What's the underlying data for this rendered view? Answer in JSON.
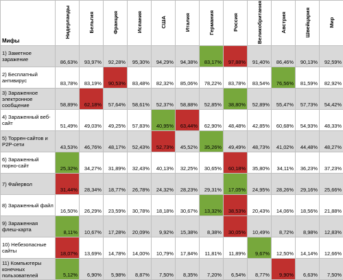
{
  "table": {
    "corner": "Мифы",
    "columns": [
      "Нидерланды",
      "Бельгия",
      "Франция",
      "Испания",
      "США",
      "Италия",
      "Германия",
      "Россия",
      "Великобритания",
      "Австрия",
      "Швейцария",
      "Мир"
    ],
    "highlight_colors": {
      "max": "#c0302e",
      "min": "#77a83c"
    },
    "rows": [
      {
        "label": "1) Заметное заражение",
        "cells": [
          "86,63%",
          "93,97%",
          "92,28%",
          "95,30%",
          "94,29%",
          "94,38%",
          "83,17%",
          "97,88%",
          "91,40%",
          "86,46%",
          "90,13%",
          "92,59%"
        ]
      },
      {
        "label": "2) Бесплатный антивирус",
        "cells": [
          "83,78%",
          "83,19%",
          "90,53%",
          "83,48%",
          "82,32%",
          "85,06%",
          "78,22%",
          "83,78%",
          "83,54%",
          "76,56%",
          "81,59%",
          "82,92%"
        ]
      },
      {
        "label": "3) Зараженное электронное сообщение",
        "cells": [
          "58,89%",
          "62,18%",
          "57,64%",
          "58,61%",
          "52,37%",
          "58,88%",
          "52,85%",
          "38,80%",
          "52,89%",
          "55,47%",
          "57,73%",
          "54,42%"
        ]
      },
      {
        "label": "4) Зараженный веб-сайт",
        "cells": [
          "51,49%",
          "49,03%",
          "49,25%",
          "57,83%",
          "40,95%",
          "63,44%",
          "62,90%",
          "48,48%",
          "42,85%",
          "60,68%",
          "54,93%",
          "48,33%"
        ]
      },
      {
        "label": "5) Торрен-сайтов и P2P-сети",
        "cells": [
          "43,53%",
          "46,76%",
          "48,17%",
          "52,43%",
          "52,73%",
          "45,52%",
          "35,26%",
          "49,49%",
          "48,73%",
          "41,02%",
          "44,48%",
          "48,27%"
        ]
      },
      {
        "label": "6) Зараженный порно-сайт",
        "cells": [
          "25,32%",
          "34,27%",
          "31,89%",
          "32,43%",
          "40,13%",
          "32,25%",
          "30,65%",
          "60,18%",
          "35,80%",
          "34,11%",
          "36,23%",
          "37,23%"
        ]
      },
      {
        "label": "7) Файервол",
        "cells": [
          "31,44%",
          "28,34%",
          "18,77%",
          "26,78%",
          "24,32%",
          "28,23%",
          "29,31%",
          "17,05%",
          "24,95%",
          "28,26%",
          "29,16%",
          "25,66%"
        ]
      },
      {
        "label": "8) Зараженный файл",
        "cells": [
          "16,50%",
          "26,29%",
          "23,59%",
          "30,78%",
          "18,18%",
          "30,67%",
          "13,32%",
          "38,53%",
          "20,43%",
          "14,06%",
          "18,56%",
          "21,88%"
        ]
      },
      {
        "label": "9) Зараженная флеш-карта",
        "cells": [
          "8,11%",
          "10,67%",
          "17,28%",
          "20,09%",
          "9,92%",
          "15,38%",
          "8,38%",
          "30,05%",
          "10,49%",
          "8,72%",
          "8,98%",
          "12,83%"
        ]
      },
      {
        "label": "10) Небезопасные сайты",
        "cells": [
          "18,07%",
          "13,69%",
          "14,78%",
          "14,00%",
          "10,79%",
          "17,84%",
          "11,81%",
          "11,89%",
          "9,67%",
          "12,50%",
          "14,14%",
          "12,66%"
        ]
      },
      {
        "label": "11) Компьютеры конечных пользователей",
        "cells": [
          "5,12%",
          "6,90%",
          "5,98%",
          "8,87%",
          "7,50%",
          "8,35%",
          "7,20%",
          "6,54%",
          "8,77%",
          "9,90%",
          "6,63%",
          "7,50%"
        ]
      }
    ]
  }
}
